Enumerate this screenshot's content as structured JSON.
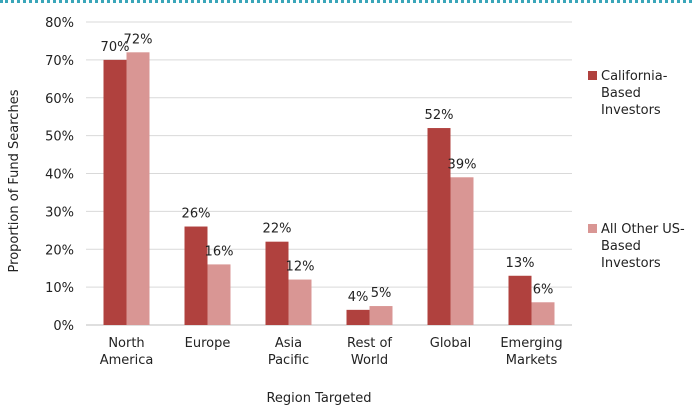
{
  "chart_data": {
    "type": "bar",
    "xlabel": "Region Targeted",
    "ylabel": "Proportion of Fund Searches",
    "ylim": [
      0,
      80
    ],
    "yticks": [
      "0%",
      "10%",
      "20%",
      "30%",
      "40%",
      "50%",
      "60%",
      "70%",
      "80%"
    ],
    "categories": [
      [
        "North",
        "America"
      ],
      [
        "Europe"
      ],
      [
        "Asia",
        "Pacific"
      ],
      [
        "Rest of",
        "World"
      ],
      [
        "Global"
      ],
      [
        "Emerging",
        "Markets"
      ]
    ],
    "series": [
      {
        "name": [
          "California-",
          "Based",
          "Investors"
        ],
        "color": "#b0413e",
        "values": [
          70,
          26,
          22,
          4,
          52,
          13
        ],
        "labels": [
          "70%",
          "26%",
          "22%",
          "4%",
          "52%",
          "13%"
        ]
      },
      {
        "name": [
          "All Other US-",
          "Based",
          "Investors"
        ],
        "color": "#d99694",
        "values": [
          72,
          16,
          12,
          5,
          39,
          6
        ],
        "labels": [
          "72%",
          "16%",
          "12%",
          "5%",
          "39%",
          "6%"
        ]
      }
    ],
    "grid": true,
    "legend_position": "right"
  }
}
